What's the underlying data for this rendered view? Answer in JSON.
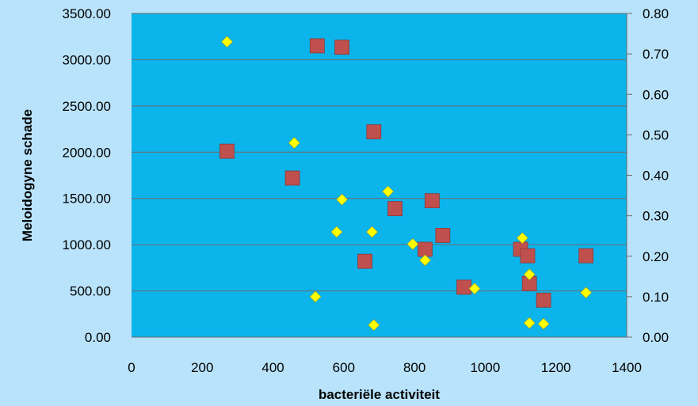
{
  "chart_data": {
    "type": "scatter",
    "title": "",
    "xlabel": "bacteriële activiteit",
    "ylabel": "Meloidogyne schade",
    "y2label": "",
    "xlim": [
      0,
      1400
    ],
    "ylim": [
      0,
      3500
    ],
    "y2lim": [
      0,
      0.8
    ],
    "x_ticks": [
      "0",
      "200",
      "400",
      "600",
      "800",
      "1000",
      "1200",
      "1400"
    ],
    "y_ticks": [
      "0.00",
      "500.00",
      "1000.00",
      "1500.00",
      "2000.00",
      "2500.00",
      "3000.00",
      "3500.00"
    ],
    "y2_ticks": [
      "0.00",
      "0.10",
      "0.20",
      "0.30",
      "0.40",
      "0.50",
      "0.60",
      "0.70",
      "0.80"
    ],
    "grid": "horizontal",
    "plot_background": "#0cb4ec",
    "series": [
      {
        "name": "",
        "axis": "left",
        "marker": "square",
        "color": "#c0504d",
        "points": [
          [
            270,
            2010
          ],
          [
            455,
            1720
          ],
          [
            525,
            3150
          ],
          [
            595,
            3135
          ],
          [
            660,
            820
          ],
          [
            685,
            2220
          ],
          [
            745,
            1390
          ],
          [
            830,
            950
          ],
          [
            850,
            1475
          ],
          [
            880,
            1100
          ],
          [
            940,
            540
          ],
          [
            1100,
            950
          ],
          [
            1120,
            880
          ],
          [
            1125,
            580
          ],
          [
            1165,
            400
          ],
          [
            1285,
            880
          ]
        ]
      },
      {
        "name": "",
        "axis": "right",
        "marker": "diamond",
        "color": "#ffff00",
        "points": [
          [
            270,
            0.73
          ],
          [
            460,
            0.48
          ],
          [
            520,
            0.1
          ],
          [
            580,
            0.26
          ],
          [
            595,
            0.34
          ],
          [
            680,
            0.26
          ],
          [
            685,
            0.03
          ],
          [
            725,
            0.36
          ],
          [
            795,
            0.23
          ],
          [
            830,
            0.19
          ],
          [
            970,
            0.12
          ],
          [
            1105,
            0.245
          ],
          [
            1125,
            0.155
          ],
          [
            1125,
            0.035
          ],
          [
            1165,
            0.033
          ],
          [
            1285,
            0.11
          ]
        ]
      }
    ]
  }
}
